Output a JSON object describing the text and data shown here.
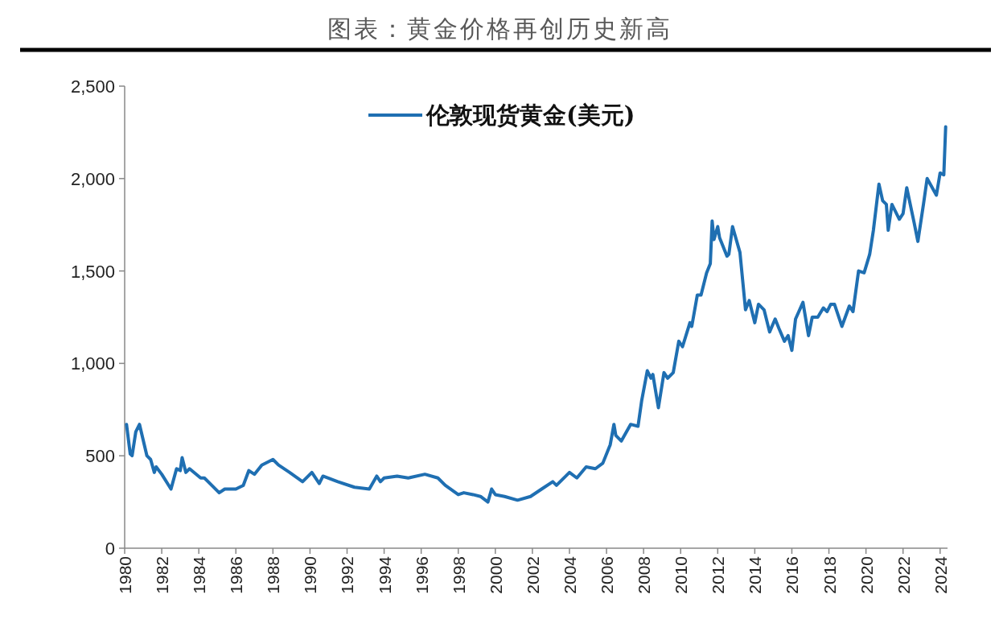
{
  "chart_data": {
    "type": "line",
    "title": "图表：黄金价格再创历史新高",
    "x": [
      1980.1,
      1980.3,
      1980.4,
      1980.6,
      1980.8,
      1981.2,
      1981.4,
      1981.6,
      1981.7,
      1982.0,
      1982.5,
      1982.8,
      1983.0,
      1983.1,
      1983.3,
      1983.5,
      1984.1,
      1984.3,
      1984.7,
      1985.1,
      1985.4,
      1986.0,
      1986.4,
      1986.7,
      1987.0,
      1987.4,
      1988.0,
      1988.3,
      1988.9,
      1989.6,
      1990.1,
      1990.5,
      1990.7,
      1991.5,
      1992.4,
      1993.2,
      1993.6,
      1993.8,
      1994.0,
      1994.7,
      1995.3,
      1996.2,
      1996.9,
      1997.3,
      1998.0,
      1998.3,
      1998.8,
      1999.2,
      1999.6,
      1999.8,
      2000.0,
      2000.5,
      2001.2,
      2001.9,
      2002.5,
      2003.1,
      2003.3,
      2004.0,
      2004.4,
      2004.9,
      2005.4,
      2005.8,
      2006.2,
      2006.4,
      2006.5,
      2006.8,
      2007.3,
      2007.7,
      2007.9,
      2008.2,
      2008.4,
      2008.5,
      2008.8,
      2009.1,
      2009.3,
      2009.6,
      2009.9,
      2010.1,
      2010.5,
      2010.6,
      2010.9,
      2011.1,
      2011.4,
      2011.6,
      2011.7,
      2011.8,
      2012.0,
      2012.1,
      2012.5,
      2012.6,
      2012.8,
      2013.2,
      2013.5,
      2013.7,
      2014.0,
      2014.2,
      2014.5,
      2014.8,
      2015.1,
      2015.3,
      2015.6,
      2015.8,
      2016.0,
      2016.2,
      2016.6,
      2016.9,
      2017.1,
      2017.4,
      2017.7,
      2017.9,
      2018.1,
      2018.3,
      2018.7,
      2019.1,
      2019.3,
      2019.6,
      2019.9,
      2020.2,
      2020.4,
      2020.7,
      2020.9,
      2021.1,
      2021.2,
      2021.4,
      2021.8,
      2022.0,
      2022.2,
      2022.6,
      2022.8,
      2023.1,
      2023.3,
      2023.8,
      2024.0,
      2024.2,
      2024.3
    ],
    "series": [
      {
        "name": "伦敦现货黄金(美元)",
        "color": "#1f6fb2",
        "values": [
          670,
          510,
          500,
          630,
          670,
          500,
          480,
          410,
          440,
          400,
          320,
          430,
          420,
          490,
          410,
          430,
          380,
          380,
          340,
          300,
          320,
          320,
          340,
          420,
          400,
          450,
          480,
          450,
          410,
          360,
          410,
          350,
          390,
          360,
          330,
          320,
          390,
          360,
          380,
          390,
          380,
          400,
          380,
          340,
          290,
          300,
          290,
          280,
          250,
          320,
          290,
          280,
          260,
          280,
          320,
          360,
          340,
          410,
          380,
          440,
          430,
          460,
          560,
          670,
          610,
          580,
          670,
          660,
          800,
          960,
          920,
          940,
          760,
          950,
          920,
          950,
          1120,
          1090,
          1220,
          1200,
          1370,
          1370,
          1490,
          1540,
          1770,
          1670,
          1740,
          1680,
          1580,
          1590,
          1740,
          1600,
          1290,
          1340,
          1220,
          1320,
          1290,
          1170,
          1240,
          1190,
          1120,
          1150,
          1070,
          1240,
          1330,
          1150,
          1250,
          1250,
          1300,
          1280,
          1320,
          1320,
          1200,
          1310,
          1280,
          1500,
          1490,
          1590,
          1720,
          1970,
          1880,
          1860,
          1720,
          1860,
          1780,
          1810,
          1950,
          1760,
          1660,
          1860,
          2000,
          1910,
          2030,
          2020,
          2280
        ]
      }
    ],
    "xlim": [
      1980,
      2024.4
    ],
    "xticks": [
      1980,
      1982,
      1984,
      1986,
      1988,
      1990,
      1992,
      1994,
      1996,
      1998,
      2000,
      2002,
      2004,
      2006,
      2008,
      2010,
      2012,
      2014,
      2016,
      2018,
      2020,
      2022,
      2024
    ],
    "ylim": [
      0,
      2500
    ],
    "yticks": [
      0,
      {
        "value": 500,
        "label": "500"
      },
      {
        "value": 1000,
        "label": "1,000"
      },
      {
        "value": 1500,
        "label": "1,500"
      },
      {
        "value": 2000,
        "label": "2,000"
      },
      {
        "value": 2500,
        "label": "2,500"
      }
    ],
    "legend": "top"
  }
}
